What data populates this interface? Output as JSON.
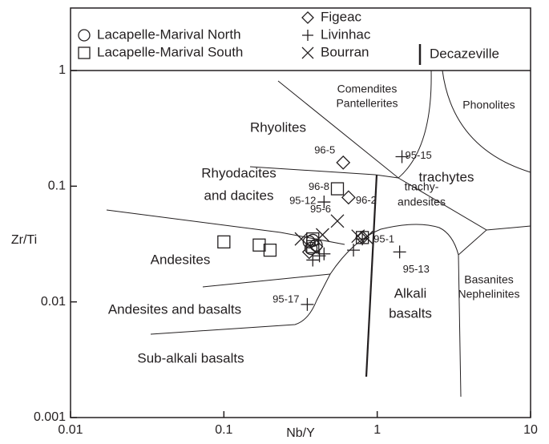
{
  "chart_data": {
    "type": "scatter",
    "x_label": "Nb/Y",
    "y_label": "Zr/Ti",
    "xlim": [
      0.01,
      10
    ],
    "ylim": [
      0.001,
      1
    ],
    "xticks": [
      0.01,
      0.1,
      1,
      10
    ],
    "yticks": [
      0.001,
      0.01,
      0.1,
      1
    ],
    "log_x": true,
    "log_y": true,
    "regions": [
      "Comendites",
      "Pantellerites",
      "Phonolites",
      "Rhyolites",
      "trachytes",
      "Rhyodacites",
      "and dacites",
      "trachy-",
      "andesites",
      "Andesites",
      "Basanites",
      "Nephelinites",
      "Andesites and basalts",
      "Alkali",
      "basalts",
      "Sub-alkali basalts"
    ],
    "series": [
      {
        "name": "Lacapelle-Marival North",
        "marker": "circle",
        "color": "#231f20",
        "x": [
          0.36,
          0.38,
          0.4,
          0.37
        ],
        "y": [
          0.033,
          0.034,
          0.031,
          0.029
        ],
        "point_labels": [
          null,
          null,
          null,
          null
        ]
      },
      {
        "name": "Lacapelle-Marival South",
        "marker": "square",
        "color": "#231f20",
        "x": [
          0.1,
          0.17,
          0.2,
          0.55,
          0.38,
          0.38,
          0.8
        ],
        "y": [
          0.033,
          0.031,
          0.028,
          0.095,
          0.03,
          0.035,
          0.036
        ],
        "point_labels": [
          null,
          null,
          null,
          "96-8",
          null,
          null,
          null
        ]
      },
      {
        "name": "Figeac",
        "marker": "diamond",
        "color": "#231f20",
        "x": [
          0.6,
          0.65,
          0.36,
          0.4,
          0.8
        ],
        "y": [
          0.16,
          0.08,
          0.027,
          0.03,
          0.036
        ],
        "point_labels": [
          "96-5",
          "96-2",
          null,
          null,
          null
        ]
      },
      {
        "name": "Livinhac",
        "marker": "plus",
        "color": "#231f20",
        "x": [
          0.45,
          0.35,
          1.45,
          1.4,
          0.7,
          0.42,
          0.38,
          0.45,
          0.8
        ],
        "y": [
          0.073,
          0.0095,
          0.18,
          0.027,
          0.028,
          0.025,
          0.023,
          0.026,
          0.035
        ],
        "point_labels": [
          "95-12",
          "95-17",
          "95-15",
          "95-13",
          null,
          null,
          null,
          null,
          "95-1"
        ]
      },
      {
        "name": "Bourran",
        "marker": "x",
        "color": "#231f20",
        "x": [
          0.55,
          0.32,
          0.44,
          0.75,
          0.85
        ],
        "y": [
          0.05,
          0.035,
          0.038,
          0.037,
          0.036
        ],
        "point_labels": [
          "95-6",
          null,
          null,
          null,
          null
        ]
      },
      {
        "name": "Decazeville",
        "marker": "bar",
        "color": "#231f20",
        "x": [],
        "y": [],
        "point_labels": []
      }
    ]
  }
}
